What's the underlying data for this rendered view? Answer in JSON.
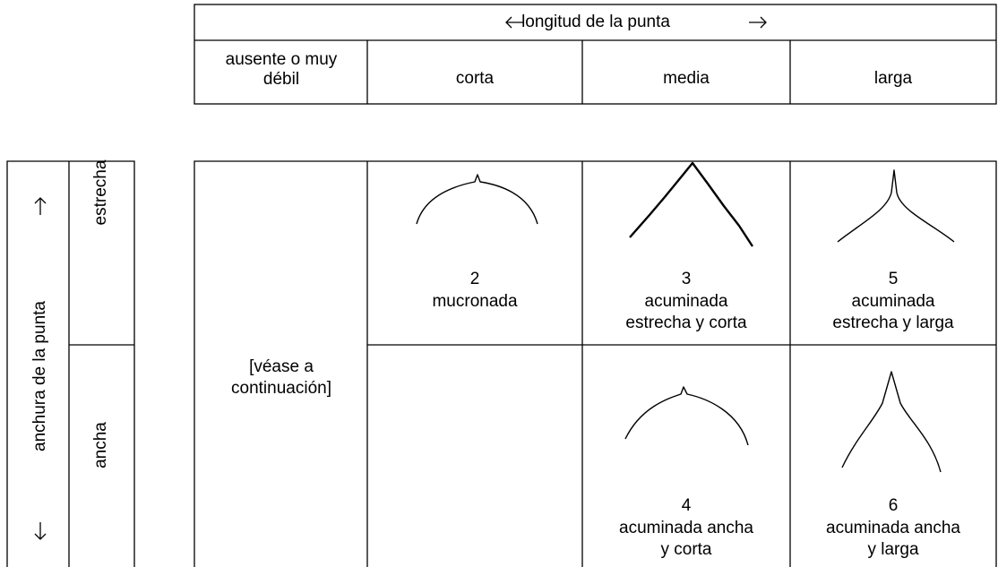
{
  "top_table": {
    "header": "longitud de la punta",
    "columns": [
      [
        "ausente o muy",
        "débil"
      ],
      [
        "corta"
      ],
      [
        "media"
      ],
      [
        "larga"
      ]
    ]
  },
  "side": {
    "label": "anchura de la punta",
    "rows": [
      "estrecha",
      "ancha"
    ]
  },
  "grid": {
    "note": [
      "[véase a",
      "continuación]"
    ],
    "cells": [
      {
        "number": "2",
        "label": [
          "mucronada"
        ]
      },
      {
        "number": "3",
        "label": [
          "acuminada",
          "estrecha y corta"
        ]
      },
      {
        "number": "5",
        "label": [
          "acuminada",
          "estrecha y larga"
        ]
      },
      {
        "number": "4",
        "label": [
          "acuminada ancha",
          "y corta"
        ]
      },
      {
        "number": "6",
        "label": [
          "acuminada ancha",
          "y larga"
        ]
      }
    ]
  }
}
